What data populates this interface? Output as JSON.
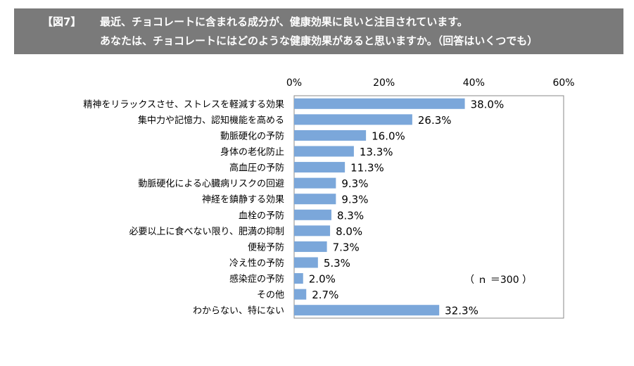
{
  "header": {
    "figure_label": "【図7】",
    "line1": "最近、チョコレートに含まれる成分が、健康効果に良いと注目されています。",
    "line2": "あなたは、チョコレートにはどのような健康効果があると思いますか。（回答はいくつでも）"
  },
  "chart_data": {
    "type": "bar",
    "orientation": "horizontal",
    "categories": [
      "精神をリラックスさせ、ストレスを軽減する効果",
      "集中力や記憶力、認知機能を高める",
      "動脈硬化の予防",
      "身体の老化防止",
      "高血圧の予防",
      "動脈硬化による心臓病リスクの回避",
      "神経を鎮静する効果",
      "血栓の予防",
      "必要以上に食べない限り、肥満の抑制",
      "便秘予防",
      "冷え性の予防",
      "感染症の予防",
      "その他",
      "わからない、特にない"
    ],
    "values": [
      38.0,
      26.3,
      16.0,
      13.3,
      11.3,
      9.3,
      9.3,
      8.3,
      8.0,
      7.3,
      5.3,
      2.0,
      2.7,
      32.3
    ],
    "value_labels": [
      "38.0%",
      "26.3%",
      "16.0%",
      "13.3%",
      "11.3%",
      "9.3%",
      "9.3%",
      "8.3%",
      "8.0%",
      "7.3%",
      "5.3%",
      "2.0%",
      "2.7%",
      "32.3%"
    ],
    "xlim": [
      0,
      60
    ],
    "xticks": [
      0,
      20,
      40,
      60
    ],
    "xtick_labels": [
      "0%",
      "20%",
      "40%",
      "60%"
    ],
    "axis_position": "top",
    "grid": false,
    "bar_color": "#7ba7da",
    "sample_note": "（ ｎ ＝300 ）"
  }
}
